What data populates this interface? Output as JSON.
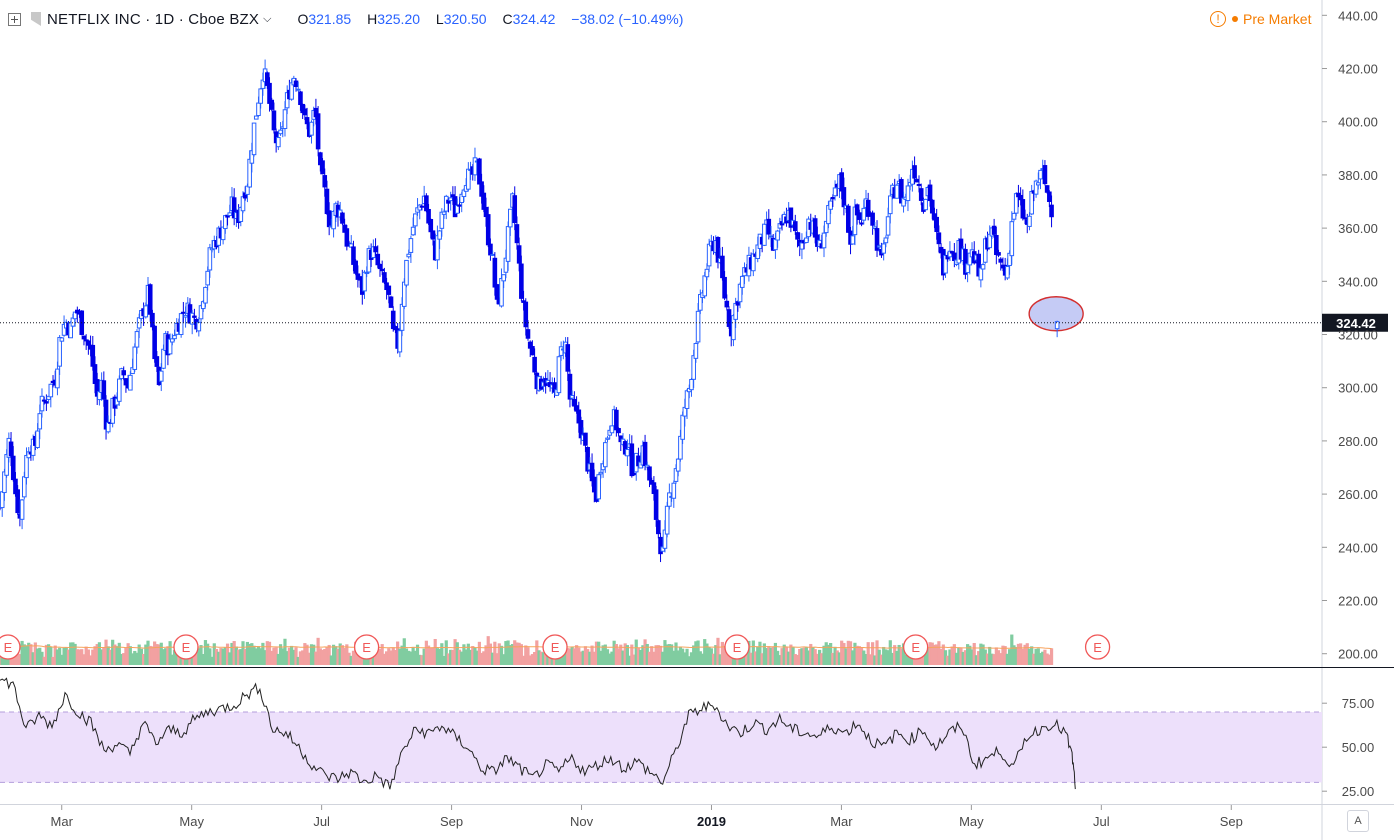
{
  "header": {
    "symbol_title": "NETFLIX INC · 1D · Cboe BZX",
    "o_label": "O",
    "o_value": "321.85",
    "h_label": "H",
    "h_value": "325.20",
    "l_label": "L",
    "l_value": "320.50",
    "c_label": "C",
    "c_value": "324.42",
    "change": "−38.02 (−10.49%)",
    "market_status": "Pre Market"
  },
  "colors": {
    "up_candle": "#2962ff",
    "down_candle": "#0000e6",
    "volume_up": "#80cca0",
    "volume_down": "#f2a1a1",
    "volume_ma": "#f7a35c",
    "rsi_line": "#222222",
    "rsi_band": "#ede0fb",
    "earnings": "#f05757",
    "price_line": "#131722"
  },
  "toolbar": {
    "auto_scale_label": "A"
  },
  "chart_data": {
    "type": "candlestick",
    "price_axis": {
      "ylim": [
        195,
        442
      ],
      "ticks": [
        "440.00",
        "420.00",
        "400.00",
        "380.00",
        "360.00",
        "340.00",
        "320.00",
        "300.00",
        "280.00",
        "260.00",
        "240.00",
        "220.00",
        "200.00"
      ],
      "tick_values": [
        440,
        420,
        400,
        380,
        360,
        340,
        320,
        300,
        280,
        260,
        240,
        220,
        200
      ]
    },
    "last_price": {
      "value": 324.42,
      "label": "324.42"
    },
    "x_axis": {
      "ticks": [
        {
          "label": "Mar",
          "x": 1.5
        },
        {
          "label": "May",
          "x": 3.5
        },
        {
          "label": "Jul",
          "x": 5.5
        },
        {
          "label": "Sep",
          "x": 7.5
        },
        {
          "label": "Nov",
          "x": 9.5
        },
        {
          "label": "2019",
          "x": 11.5,
          "bold": true
        },
        {
          "label": "Mar",
          "x": 13.5
        },
        {
          "label": "May",
          "x": 15.5
        },
        {
          "label": "Jul",
          "x": 17.5
        },
        {
          "label": "Sep",
          "x": 19.5
        }
      ],
      "xlim": [
        0.55,
        20.65
      ]
    },
    "closes": [
      [
        0.55,
        255
      ],
      [
        0.62,
        268
      ],
      [
        0.7,
        282
      ],
      [
        0.78,
        262
      ],
      [
        0.86,
        250
      ],
      [
        0.92,
        268
      ],
      [
        1.0,
        280
      ],
      [
        1.08,
        276
      ],
      [
        1.16,
        292
      ],
      [
        1.24,
        295
      ],
      [
        1.32,
        300
      ],
      [
        1.4,
        304
      ],
      [
        1.48,
        320
      ],
      [
        1.56,
        325
      ],
      [
        1.64,
        322
      ],
      [
        1.72,
        330
      ],
      [
        1.8,
        324
      ],
      [
        1.88,
        318
      ],
      [
        1.96,
        312
      ],
      [
        2.04,
        296
      ],
      [
        2.12,
        302
      ],
      [
        2.2,
        284
      ],
      [
        2.28,
        292
      ],
      [
        2.36,
        298
      ],
      [
        2.44,
        306
      ],
      [
        2.52,
        300
      ],
      [
        2.6,
        312
      ],
      [
        2.68,
        322
      ],
      [
        2.76,
        330
      ],
      [
        2.84,
        336
      ],
      [
        2.92,
        312
      ],
      [
        3.0,
        300
      ],
      [
        3.08,
        318
      ],
      [
        3.16,
        315
      ],
      [
        3.24,
        322
      ],
      [
        3.32,
        326
      ],
      [
        3.4,
        330
      ],
      [
        3.48,
        328
      ],
      [
        3.56,
        325
      ],
      [
        3.64,
        330
      ],
      [
        3.72,
        342
      ],
      [
        3.8,
        352
      ],
      [
        3.88,
        356
      ],
      [
        3.96,
        360
      ],
      [
        4.04,
        364
      ],
      [
        4.12,
        368
      ],
      [
        4.2,
        362
      ],
      [
        4.28,
        372
      ],
      [
        4.36,
        378
      ],
      [
        4.44,
        395
      ],
      [
        4.52,
        408
      ],
      [
        4.6,
        420
      ],
      [
        4.68,
        410
      ],
      [
        4.76,
        396
      ],
      [
        4.84,
        390
      ],
      [
        4.92,
        402
      ],
      [
        5.0,
        412
      ],
      [
        5.08,
        418
      ],
      [
        5.16,
        412
      ],
      [
        5.24,
        400
      ],
      [
        5.32,
        396
      ],
      [
        5.4,
        405
      ],
      [
        5.48,
        380
      ],
      [
        5.56,
        372
      ],
      [
        5.64,
        360
      ],
      [
        5.72,
        368
      ],
      [
        5.8,
        366
      ],
      [
        5.88,
        356
      ],
      [
        5.96,
        350
      ],
      [
        6.04,
        342
      ],
      [
        6.12,
        336
      ],
      [
        6.2,
        348
      ],
      [
        6.28,
        352
      ],
      [
        6.36,
        346
      ],
      [
        6.44,
        340
      ],
      [
        6.52,
        336
      ],
      [
        6.6,
        320
      ],
      [
        6.68,
        316
      ],
      [
        6.76,
        340
      ],
      [
        6.84,
        352
      ],
      [
        6.92,
        362
      ],
      [
        7.0,
        368
      ],
      [
        7.08,
        372
      ],
      [
        7.16,
        360
      ],
      [
        7.24,
        350
      ],
      [
        7.32,
        360
      ],
      [
        7.4,
        368
      ],
      [
        7.48,
        372
      ],
      [
        7.56,
        366
      ],
      [
        7.64,
        374
      ],
      [
        7.72,
        380
      ],
      [
        7.8,
        378
      ],
      [
        7.88,
        384
      ],
      [
        7.96,
        375
      ],
      [
        8.04,
        360
      ],
      [
        8.12,
        350
      ],
      [
        8.2,
        330
      ],
      [
        8.28,
        340
      ],
      [
        8.36,
        355
      ],
      [
        8.44,
        370
      ],
      [
        8.52,
        350
      ],
      [
        8.6,
        330
      ],
      [
        8.68,
        318
      ],
      [
        8.76,
        310
      ],
      [
        8.84,
        300
      ],
      [
        8.92,
        305
      ],
      [
        9.0,
        300
      ],
      [
        9.08,
        296
      ],
      [
        9.16,
        310
      ],
      [
        9.24,
        320
      ],
      [
        9.32,
        296
      ],
      [
        9.4,
        290
      ],
      [
        9.48,
        286
      ],
      [
        9.56,
        276
      ],
      [
        9.64,
        266
      ],
      [
        9.72,
        258
      ],
      [
        9.8,
        272
      ],
      [
        9.88,
        280
      ],
      [
        9.96,
        290
      ],
      [
        10.04,
        286
      ],
      [
        10.12,
        276
      ],
      [
        10.2,
        280
      ],
      [
        10.28,
        270
      ],
      [
        10.36,
        272
      ],
      [
        10.44,
        278
      ],
      [
        10.52,
        268
      ],
      [
        10.6,
        260
      ],
      [
        10.68,
        246
      ],
      [
        10.76,
        236
      ],
      [
        10.84,
        258
      ],
      [
        10.92,
        266
      ],
      [
        11.0,
        276
      ],
      [
        11.08,
        292
      ],
      [
        11.16,
        300
      ],
      [
        11.24,
        316
      ],
      [
        11.32,
        330
      ],
      [
        11.4,
        342
      ],
      [
        11.48,
        352
      ],
      [
        11.56,
        356
      ],
      [
        11.64,
        344
      ],
      [
        11.72,
        332
      ],
      [
        11.8,
        322
      ],
      [
        11.88,
        332
      ],
      [
        11.96,
        340
      ],
      [
        12.04,
        344
      ],
      [
        12.12,
        348
      ],
      [
        12.2,
        352
      ],
      [
        12.28,
        356
      ],
      [
        12.36,
        360
      ],
      [
        12.44,
        352
      ],
      [
        12.52,
        356
      ],
      [
        12.6,
        362
      ],
      [
        12.68,
        366
      ],
      [
        12.76,
        360
      ],
      [
        12.84,
        352
      ],
      [
        12.92,
        356
      ],
      [
        13.0,
        364
      ],
      [
        13.08,
        358
      ],
      [
        13.16,
        352
      ],
      [
        13.24,
        360
      ],
      [
        13.32,
        366
      ],
      [
        13.4,
        372
      ],
      [
        13.48,
        378
      ],
      [
        13.56,
        368
      ],
      [
        13.64,
        356
      ],
      [
        13.72,
        366
      ],
      [
        13.8,
        362
      ],
      [
        13.88,
        370
      ],
      [
        13.96,
        366
      ],
      [
        14.04,
        356
      ],
      [
        14.12,
        346
      ],
      [
        14.2,
        362
      ],
      [
        14.28,
        372
      ],
      [
        14.36,
        378
      ],
      [
        14.44,
        370
      ],
      [
        14.52,
        374
      ],
      [
        14.6,
        384
      ],
      [
        14.68,
        378
      ],
      [
        14.76,
        370
      ],
      [
        14.84,
        376
      ],
      [
        14.92,
        362
      ],
      [
        15.0,
        352
      ],
      [
        15.08,
        344
      ],
      [
        15.16,
        356
      ],
      [
        15.24,
        350
      ],
      [
        15.32,
        354
      ],
      [
        15.4,
        346
      ],
      [
        15.48,
        352
      ],
      [
        15.56,
        348
      ],
      [
        15.64,
        340
      ],
      [
        15.72,
        354
      ],
      [
        15.8,
        360
      ],
      [
        15.88,
        350
      ],
      [
        15.96,
        346
      ],
      [
        16.04,
        342
      ],
      [
        16.12,
        362
      ],
      [
        16.2,
        372
      ],
      [
        16.28,
        366
      ],
      [
        16.36,
        360
      ],
      [
        16.44,
        372
      ],
      [
        16.52,
        378
      ],
      [
        16.6,
        380
      ],
      [
        16.68,
        372
      ],
      [
        16.76,
        366
      ]
    ],
    "last_session": {
      "x": 16.82,
      "open": 321.85,
      "high": 325.2,
      "low": 320.5,
      "close": 324.42
    },
    "volume": {
      "ylim": [
        0,
        250
      ],
      "ma_window": 50
    },
    "earnings_markers": [
      {
        "label": "E",
        "x": 0.58
      },
      {
        "label": "E",
        "x": 3.32
      },
      {
        "label": "E",
        "x": 6.1
      },
      {
        "label": "E",
        "x": 9.0
      },
      {
        "label": "E",
        "x": 11.8
      },
      {
        "label": "E",
        "x": 14.55
      },
      {
        "label": "E",
        "x": 17.35
      }
    ],
    "rsi": {
      "ylim": [
        20,
        95
      ],
      "band": [
        30,
        70
      ],
      "ticks": [
        "75.00",
        "50.00",
        "25.00"
      ],
      "tick_values": [
        75,
        50,
        25
      ],
      "values": [
        [
          0.55,
          88
        ],
        [
          0.75,
          86
        ],
        [
          0.95,
          60
        ],
        [
          1.15,
          68
        ],
        [
          1.35,
          62
        ],
        [
          1.55,
          80
        ],
        [
          1.75,
          70
        ],
        [
          1.95,
          64
        ],
        [
          2.15,
          48
        ],
        [
          2.35,
          52
        ],
        [
          2.55,
          46
        ],
        [
          2.75,
          64
        ],
        [
          2.95,
          52
        ],
        [
          3.15,
          60
        ],
        [
          3.35,
          58
        ],
        [
          3.55,
          66
        ],
        [
          3.75,
          70
        ],
        [
          3.95,
          72
        ],
        [
          4.15,
          74
        ],
        [
          4.35,
          80
        ],
        [
          4.55,
          84
        ],
        [
          4.75,
          60
        ],
        [
          4.95,
          58
        ],
        [
          5.15,
          50
        ],
        [
          5.35,
          40
        ],
        [
          5.55,
          34
        ],
        [
          5.75,
          32
        ],
        [
          5.95,
          36
        ],
        [
          6.15,
          30
        ],
        [
          6.35,
          34
        ],
        [
          6.55,
          27
        ],
        [
          6.75,
          48
        ],
        [
          6.95,
          60
        ],
        [
          7.15,
          58
        ],
        [
          7.35,
          62
        ],
        [
          7.55,
          56
        ],
        [
          7.75,
          50
        ],
        [
          7.95,
          38
        ],
        [
          8.15,
          36
        ],
        [
          8.35,
          44
        ],
        [
          8.55,
          38
        ],
        [
          8.75,
          32
        ],
        [
          8.95,
          40
        ],
        [
          9.15,
          36
        ],
        [
          9.35,
          44
        ],
        [
          9.55,
          36
        ],
        [
          9.75,
          40
        ],
        [
          9.95,
          44
        ],
        [
          10.15,
          38
        ],
        [
          10.35,
          42
        ],
        [
          10.55,
          36
        ],
        [
          10.75,
          30
        ],
        [
          10.95,
          48
        ],
        [
          11.15,
          68
        ],
        [
          11.35,
          72
        ],
        [
          11.55,
          74
        ],
        [
          11.75,
          62
        ],
        [
          11.95,
          58
        ],
        [
          12.15,
          64
        ],
        [
          12.35,
          60
        ],
        [
          12.55,
          66
        ],
        [
          12.75,
          60
        ],
        [
          12.95,
          58
        ],
        [
          13.15,
          56
        ],
        [
          13.35,
          62
        ],
        [
          13.55,
          58
        ],
        [
          13.75,
          64
        ],
        [
          13.95,
          54
        ],
        [
          14.15,
          50
        ],
        [
          14.35,
          58
        ],
        [
          14.55,
          54
        ],
        [
          14.75,
          60
        ],
        [
          14.95,
          50
        ],
        [
          15.15,
          58
        ],
        [
          15.35,
          62
        ],
        [
          15.55,
          40
        ],
        [
          15.75,
          44
        ],
        [
          15.95,
          48
        ],
        [
          16.15,
          38
        ],
        [
          16.35,
          56
        ],
        [
          16.55,
          60
        ],
        [
          16.75,
          64
        ],
        [
          16.95,
          58
        ],
        [
          17.05,
          45
        ],
        [
          17.1,
          28
        ]
      ]
    }
  }
}
